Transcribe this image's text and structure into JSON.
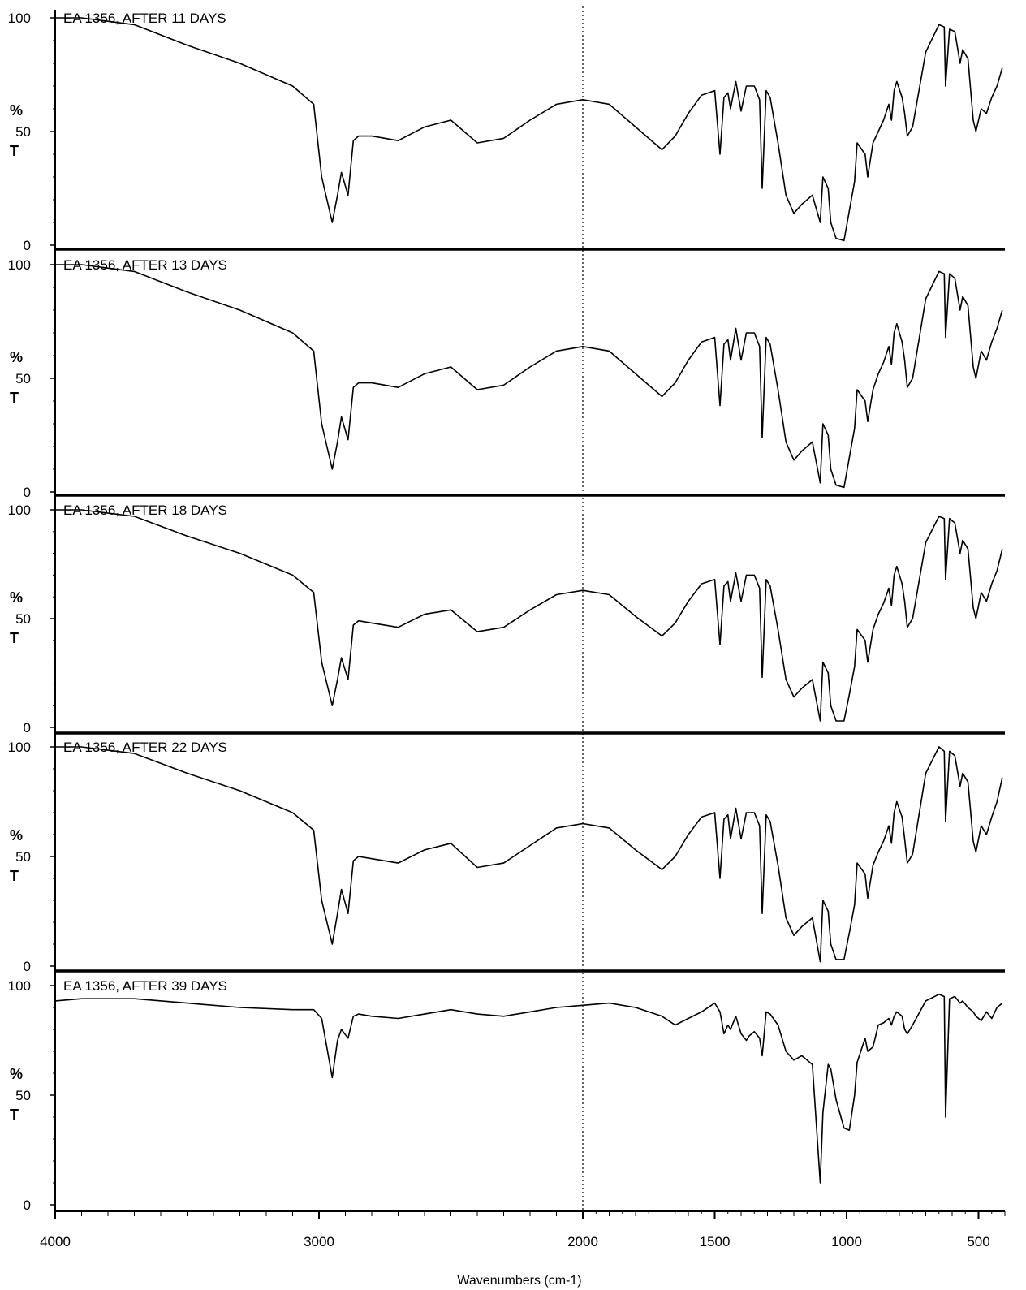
{
  "chart_data": {
    "type": "line",
    "xlabel": "Wavenumbers (cm-1)",
    "ylabel_top": "%",
    "ylabel_bottom": "T",
    "xlim": [
      4000,
      400
    ],
    "ylim": [
      0,
      100
    ],
    "x_ticks": [
      4000,
      3000,
      2000,
      1500,
      1000,
      500
    ],
    "y_ticks": [
      0,
      50,
      100
    ],
    "reference_line_x": 2000,
    "panels": [
      {
        "title": "EA 1356, AFTER 11 DAYS",
        "x": [
          4000,
          3900,
          3700,
          3500,
          3300,
          3100,
          3020,
          2990,
          2950,
          2930,
          2915,
          2890,
          2870,
          2850,
          2800,
          2700,
          2600,
          2500,
          2400,
          2300,
          2200,
          2100,
          2000,
          1900,
          1800,
          1700,
          1650,
          1600,
          1550,
          1500,
          1480,
          1465,
          1450,
          1440,
          1420,
          1400,
          1380,
          1370,
          1350,
          1330,
          1320,
          1305,
          1290,
          1260,
          1230,
          1200,
          1170,
          1130,
          1100,
          1090,
          1070,
          1060,
          1040,
          1010,
          990,
          970,
          960,
          930,
          920,
          900,
          880,
          860,
          840,
          830,
          820,
          810,
          790,
          780,
          770,
          750,
          700,
          650,
          630,
          625,
          610,
          590,
          570,
          560,
          540,
          520,
          510,
          490,
          470,
          450,
          430,
          410
        ],
        "values": [
          100,
          100,
          97,
          88,
          80,
          70,
          62,
          30,
          10,
          22,
          32,
          22,
          46,
          48,
          48,
          46,
          52,
          55,
          45,
          47,
          55,
          62,
          64,
          62,
          52,
          42,
          48,
          58,
          66,
          68,
          40,
          65,
          67,
          60,
          72,
          59,
          70,
          70,
          70,
          64,
          25,
          68,
          65,
          45,
          22,
          14,
          18,
          22,
          10,
          30,
          25,
          10,
          3,
          2,
          15,
          28,
          45,
          40,
          30,
          45,
          50,
          55,
          62,
          55,
          68,
          72,
          65,
          58,
          48,
          52,
          85,
          97,
          96,
          70,
          95,
          94,
          80,
          86,
          82,
          55,
          50,
          60,
          58,
          65,
          70,
          78
        ]
      },
      {
        "title": "EA 1356, AFTER 13 DAYS",
        "x": [
          4000,
          3900,
          3700,
          3500,
          3300,
          3100,
          3020,
          2990,
          2950,
          2930,
          2915,
          2890,
          2870,
          2850,
          2800,
          2700,
          2600,
          2500,
          2400,
          2300,
          2200,
          2100,
          2000,
          1900,
          1800,
          1700,
          1650,
          1600,
          1550,
          1500,
          1480,
          1465,
          1450,
          1440,
          1420,
          1400,
          1380,
          1370,
          1350,
          1330,
          1320,
          1305,
          1290,
          1260,
          1230,
          1200,
          1170,
          1130,
          1100,
          1090,
          1070,
          1060,
          1040,
          1010,
          990,
          970,
          960,
          930,
          920,
          900,
          880,
          860,
          840,
          830,
          820,
          810,
          790,
          780,
          770,
          750,
          700,
          650,
          630,
          625,
          610,
          590,
          570,
          560,
          540,
          520,
          510,
          490,
          470,
          450,
          430,
          410
        ],
        "values": [
          100,
          100,
          97,
          88,
          80,
          70,
          62,
          30,
          10,
          22,
          33,
          23,
          46,
          48,
          48,
          46,
          52,
          55,
          45,
          47,
          55,
          62,
          64,
          62,
          52,
          42,
          48,
          58,
          66,
          68,
          38,
          65,
          67,
          58,
          72,
          58,
          70,
          70,
          70,
          64,
          24,
          68,
          65,
          45,
          22,
          14,
          18,
          22,
          4,
          30,
          25,
          10,
          3,
          2,
          15,
          28,
          45,
          40,
          31,
          45,
          52,
          57,
          64,
          56,
          70,
          74,
          66,
          58,
          46,
          50,
          85,
          97,
          96,
          68,
          96,
          94,
          80,
          86,
          82,
          55,
          50,
          62,
          58,
          66,
          72,
          80
        ]
      },
      {
        "title": "EA 1356, AFTER 18  DAYS",
        "x": [
          4000,
          3900,
          3700,
          3500,
          3300,
          3100,
          3020,
          2990,
          2950,
          2930,
          2915,
          2890,
          2870,
          2850,
          2800,
          2700,
          2600,
          2500,
          2400,
          2300,
          2200,
          2100,
          2000,
          1900,
          1800,
          1700,
          1650,
          1600,
          1550,
          1500,
          1480,
          1465,
          1450,
          1440,
          1420,
          1400,
          1380,
          1370,
          1350,
          1330,
          1320,
          1305,
          1290,
          1260,
          1230,
          1200,
          1170,
          1130,
          1100,
          1090,
          1070,
          1060,
          1040,
          1010,
          990,
          970,
          960,
          930,
          920,
          900,
          880,
          860,
          840,
          830,
          820,
          810,
          790,
          780,
          770,
          750,
          700,
          650,
          630,
          625,
          610,
          590,
          570,
          560,
          540,
          520,
          510,
          490,
          470,
          450,
          430,
          410
        ],
        "values": [
          100,
          100,
          97,
          88,
          80,
          70,
          62,
          30,
          10,
          22,
          32,
          22,
          47,
          49,
          48,
          46,
          52,
          54,
          44,
          46,
          54,
          61,
          63,
          61,
          51,
          42,
          48,
          58,
          66,
          68,
          38,
          65,
          67,
          58,
          71,
          58,
          70,
          70,
          70,
          64,
          23,
          68,
          65,
          45,
          22,
          14,
          18,
          22,
          3,
          30,
          25,
          10,
          3,
          3,
          15,
          28,
          45,
          40,
          30,
          45,
          52,
          57,
          64,
          56,
          70,
          74,
          66,
          58,
          46,
          50,
          85,
          97,
          96,
          68,
          96,
          94,
          80,
          86,
          82,
          55,
          50,
          62,
          58,
          66,
          72,
          82
        ]
      },
      {
        "title": "EA 1356, AFTER 22 DAYS",
        "x": [
          4000,
          3900,
          3700,
          3500,
          3300,
          3100,
          3020,
          2990,
          2950,
          2930,
          2915,
          2890,
          2870,
          2850,
          2800,
          2700,
          2600,
          2500,
          2400,
          2300,
          2200,
          2100,
          2000,
          1900,
          1800,
          1700,
          1650,
          1600,
          1550,
          1500,
          1480,
          1465,
          1450,
          1440,
          1420,
          1400,
          1380,
          1370,
          1350,
          1330,
          1320,
          1305,
          1290,
          1260,
          1230,
          1200,
          1170,
          1130,
          1100,
          1090,
          1070,
          1060,
          1040,
          1010,
          990,
          970,
          960,
          930,
          920,
          900,
          880,
          860,
          840,
          830,
          820,
          810,
          790,
          780,
          770,
          750,
          700,
          650,
          630,
          625,
          610,
          590,
          570,
          560,
          540,
          520,
          510,
          490,
          470,
          450,
          430,
          410
        ],
        "values": [
          100,
          100,
          97,
          88,
          80,
          70,
          62,
          30,
          10,
          24,
          35,
          24,
          48,
          50,
          49,
          47,
          53,
          56,
          45,
          47,
          55,
          63,
          65,
          63,
          53,
          44,
          50,
          60,
          68,
          70,
          40,
          67,
          69,
          58,
          72,
          58,
          70,
          70,
          70,
          64,
          24,
          69,
          66,
          46,
          22,
          14,
          18,
          22,
          2,
          30,
          25,
          10,
          3,
          3,
          15,
          28,
          47,
          42,
          31,
          46,
          52,
          57,
          64,
          56,
          70,
          75,
          68,
          58,
          47,
          51,
          88,
          100,
          98,
          66,
          98,
          96,
          82,
          88,
          84,
          57,
          52,
          64,
          60,
          68,
          75,
          86
        ]
      },
      {
        "title": "EA 1356, AFTER 39 DAYS",
        "x": [
          4000,
          3900,
          3700,
          3500,
          3300,
          3100,
          3020,
          2990,
          2950,
          2930,
          2915,
          2890,
          2870,
          2850,
          2800,
          2700,
          2600,
          2500,
          2400,
          2300,
          2200,
          2100,
          2000,
          1900,
          1800,
          1700,
          1650,
          1600,
          1550,
          1500,
          1480,
          1465,
          1450,
          1440,
          1420,
          1400,
          1380,
          1370,
          1350,
          1330,
          1320,
          1305,
          1290,
          1260,
          1230,
          1200,
          1170,
          1130,
          1100,
          1090,
          1070,
          1060,
          1040,
          1010,
          990,
          970,
          960,
          930,
          920,
          900,
          880,
          860,
          840,
          830,
          820,
          810,
          790,
          780,
          770,
          750,
          700,
          650,
          630,
          625,
          610,
          590,
          570,
          560,
          540,
          520,
          510,
          490,
          470,
          450,
          430,
          410
        ],
        "values": [
          93,
          94,
          94,
          92,
          90,
          89,
          89,
          85,
          58,
          75,
          80,
          76,
          86,
          87,
          86,
          85,
          87,
          89,
          87,
          86,
          88,
          90,
          91,
          92,
          90,
          86,
          82,
          85,
          88,
          92,
          88,
          78,
          82,
          80,
          86,
          78,
          75,
          77,
          79,
          76,
          68,
          88,
          87,
          82,
          70,
          66,
          68,
          64,
          10,
          42,
          64,
          62,
          48,
          35,
          34,
          50,
          65,
          76,
          70,
          72,
          82,
          83,
          85,
          82,
          86,
          88,
          86,
          80,
          78,
          82,
          93,
          96,
          95,
          40,
          94,
          95,
          92,
          93,
          90,
          88,
          86,
          84,
          88,
          85,
          90,
          92
        ]
      }
    ]
  }
}
